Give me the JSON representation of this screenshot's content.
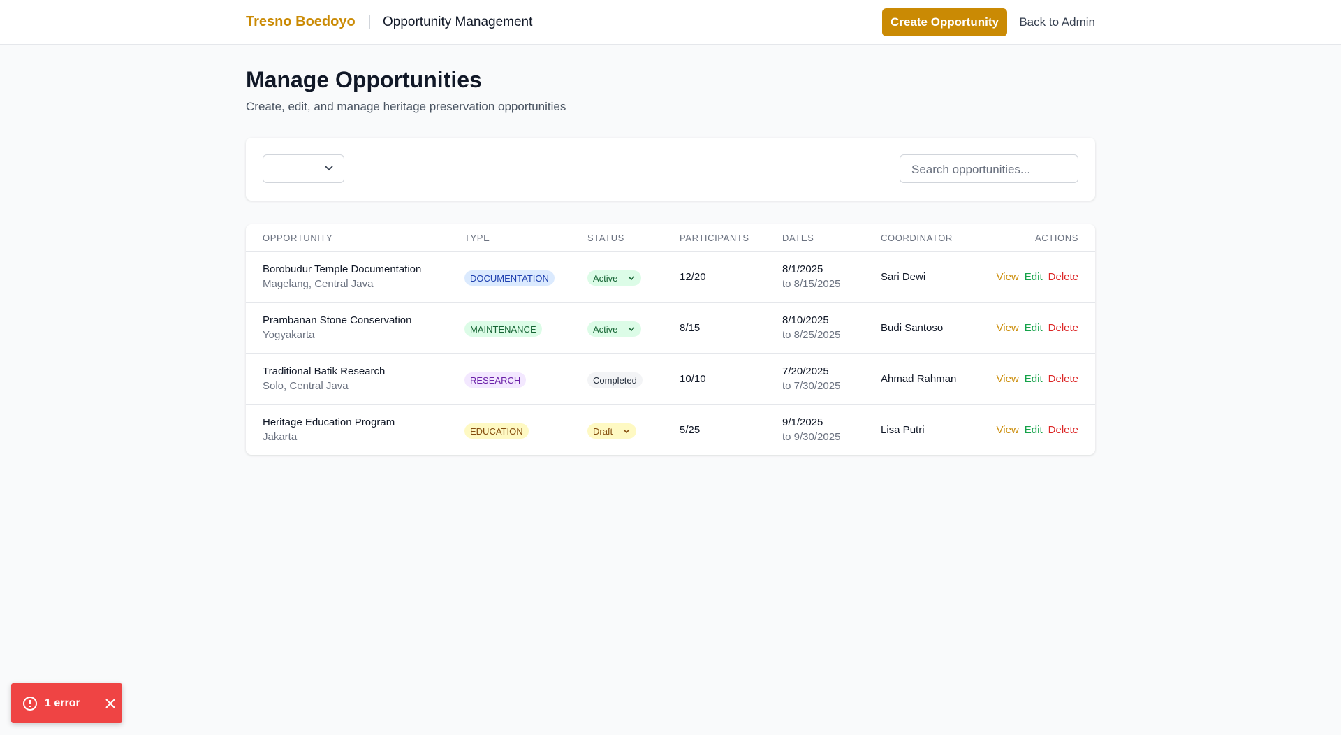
{
  "header": {
    "brand": "Tresno Boedoyo",
    "section": "Opportunity Management",
    "primary_button": "Create Opportunity",
    "back_link": "Back to Admin"
  },
  "page": {
    "title": "Manage Opportunities",
    "subtitle": "Create, edit, and manage heritage preservation opportunities"
  },
  "filters": {
    "search_placeholder": "Search opportunities..."
  },
  "table": {
    "columns": [
      "OPPORTUNITY",
      "TYPE",
      "STATUS",
      "PARTICIPANTS",
      "DATES",
      "COORDINATOR",
      "ACTIONS"
    ],
    "actions": [
      "View",
      "Edit",
      "Delete"
    ],
    "rows": [
      {
        "name": "Borobudur Temple Documentation",
        "location": "Magelang, Central Java",
        "type": "DOCUMENTATION",
        "type_bg": "#dbeafe",
        "type_fg": "#1e40af",
        "status": "Active",
        "status_bg": "#dcfce7",
        "status_fg": "#166534",
        "dropdown": true,
        "participants": "12/20",
        "start": "8/1/2025",
        "end": "to 8/15/2025",
        "coordinator": "Sari Dewi"
      },
      {
        "name": "Prambanan Stone Conservation",
        "location": "Yogyakarta",
        "type": "MAINTENANCE",
        "type_bg": "#dcfce7",
        "type_fg": "#166534",
        "status": "Active",
        "status_bg": "#dcfce7",
        "status_fg": "#166534",
        "dropdown": true,
        "participants": "8/15",
        "start": "8/10/2025",
        "end": "to 8/25/2025",
        "coordinator": "Budi Santoso"
      },
      {
        "name": "Traditional Batik Research",
        "location": "Solo, Central Java",
        "type": "RESEARCH",
        "type_bg": "#f3e8ff",
        "type_fg": "#6b21a8",
        "status": "Completed",
        "status_bg": "#f3f4f6",
        "status_fg": "#1f2937",
        "dropdown": false,
        "participants": "10/10",
        "start": "7/20/2025",
        "end": "to 7/30/2025",
        "coordinator": "Ahmad Rahman"
      },
      {
        "name": "Heritage Education Program",
        "location": "Jakarta",
        "type": "EDUCATION",
        "type_bg": "#fef9c3",
        "type_fg": "#854d0e",
        "status": "Draft",
        "status_bg": "#fef9c3",
        "status_fg": "#854d0e",
        "dropdown": true,
        "participants": "5/25",
        "start": "9/1/2025",
        "end": "to 9/30/2025",
        "coordinator": "Lisa Putri"
      }
    ]
  },
  "toast": {
    "text": "1 error"
  }
}
